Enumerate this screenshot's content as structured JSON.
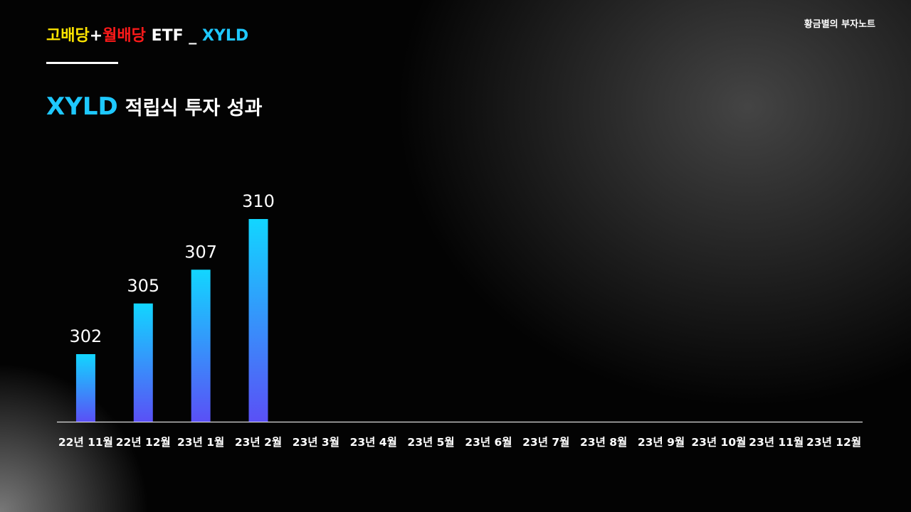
{
  "header": {
    "title_parts": [
      "고배당",
      "+",
      "월배당",
      " ETF _ ",
      "XYLD"
    ],
    "brand": "황금별의 부자노트"
  },
  "chart_data": {
    "type": "bar",
    "title_parts": [
      "XYLD",
      "적립식 투자 성과"
    ],
    "categories": [
      "22년 11월",
      "22년 12월",
      "23년 1월",
      "23년 2월",
      "23년 3월",
      "23년 4월",
      "23년 5월",
      "23년 6월",
      "23년 7월",
      "23년 8월",
      "23년 9월",
      "23년 10월",
      "23년 11월",
      "23년 12월"
    ],
    "values": [
      302,
      305,
      307,
      310,
      null,
      null,
      null,
      null,
      null,
      null,
      null,
      null,
      null,
      null
    ],
    "gradient": [
      "#12d6ff",
      "#5a50f6"
    ],
    "ylim": [
      298,
      310
    ]
  }
}
